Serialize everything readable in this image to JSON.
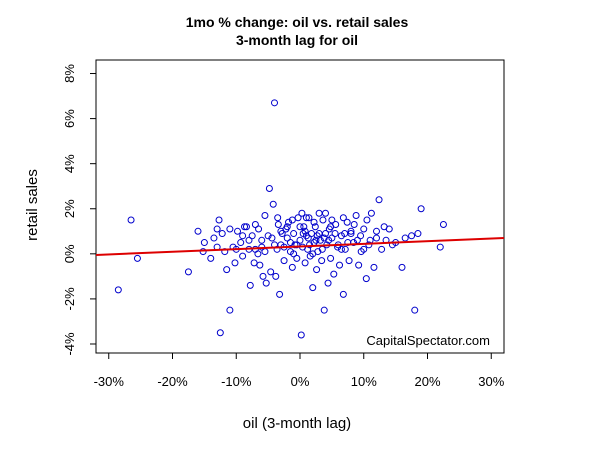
{
  "chart_data": {
    "type": "scatter",
    "title": "1mo % change: oil vs. retail sales",
    "subtitle": "3-month lag for oil",
    "xlabel": "oil (3-month lag)",
    "ylabel": "retail sales",
    "xlim": [
      -32,
      32
    ],
    "ylim": [
      -4.4,
      8.6
    ],
    "x_ticks": [
      -30,
      -20,
      -10,
      0,
      10,
      20,
      30
    ],
    "x_tick_labels": [
      "-30%",
      "-20%",
      "-10%",
      "0%",
      "10%",
      "20%",
      "30%"
    ],
    "y_ticks": [
      -4,
      -2,
      0,
      2,
      4,
      6,
      8
    ],
    "y_tick_labels": [
      "-4%",
      "-2%",
      "0%",
      "2%",
      "4%",
      "6%",
      "8%"
    ],
    "grid": false,
    "annotation": "CapitalSpectator.com",
    "colors": {
      "points": "#0000cc",
      "fit_line": "#dd0000",
      "axes": "#000000"
    },
    "fit_line": {
      "x": [
        -32,
        32
      ],
      "y": [
        -0.05,
        0.7
      ]
    },
    "points": [
      [
        -28.5,
        -1.6
      ],
      [
        -26.5,
        1.5
      ],
      [
        -25.5,
        -0.2
      ],
      [
        -17.5,
        -0.8
      ],
      [
        -16,
        1.0
      ],
      [
        -15.2,
        0.1
      ],
      [
        -14,
        -0.2
      ],
      [
        -13.5,
        0.7
      ],
      [
        -13,
        1.1
      ],
      [
        -12.7,
        1.5
      ],
      [
        -12.5,
        -3.5
      ],
      [
        -12.2,
        0.9
      ],
      [
        -11.8,
        0.1
      ],
      [
        -11.5,
        -0.7
      ],
      [
        -11,
        -2.5
      ],
      [
        -10.5,
        0.3
      ],
      [
        -10.2,
        -0.4
      ],
      [
        -9.8,
        1.0
      ],
      [
        -9.3,
        0.5
      ],
      [
        -9,
        -0.1
      ],
      [
        -8.7,
        1.2
      ],
      [
        -8.4,
        1.2
      ],
      [
        -8,
        0.2
      ],
      [
        -7.8,
        -1.4
      ],
      [
        -7.5,
        0.8
      ],
      [
        -7.2,
        -0.4
      ],
      [
        -7,
        1.3
      ],
      [
        -6.6,
        0.0
      ],
      [
        -6.3,
        -0.5
      ],
      [
        -6,
        0.6
      ],
      [
        -5.8,
        -1.0
      ],
      [
        -5.5,
        1.7
      ],
      [
        -5.3,
        -1.3
      ],
      [
        -5,
        0.8
      ],
      [
        -4.8,
        2.9
      ],
      [
        -4.6,
        -0.8
      ],
      [
        -4.4,
        0.7
      ],
      [
        -4.2,
        2.2
      ],
      [
        -4,
        6.7
      ],
      [
        -3.8,
        -1.0
      ],
      [
        -3.6,
        0.2
      ],
      [
        -3.4,
        1.3
      ],
      [
        -3.2,
        -1.8
      ],
      [
        -3,
        0.4
      ],
      [
        -2.8,
        0.9
      ],
      [
        -2.5,
        -0.3
      ],
      [
        -2.2,
        1.1
      ],
      [
        -2,
        0.7
      ],
      [
        -1.8,
        1.4
      ],
      [
        -1.5,
        0.1
      ],
      [
        -1.2,
        -0.6
      ],
      [
        -1,
        0.9
      ],
      [
        -0.8,
        0.4
      ],
      [
        -0.5,
        -0.2
      ],
      [
        -0.3,
        1.6
      ],
      [
        0,
        0.6
      ],
      [
        0.2,
        -3.6
      ],
      [
        0.4,
        0.3
      ],
      [
        0.6,
        1.2
      ],
      [
        0.8,
        -0.4
      ],
      [
        1,
        0.8
      ],
      [
        1.2,
        0.2
      ],
      [
        1.4,
        1.6
      ],
      [
        1.6,
        -0.1
      ],
      [
        1.8,
        0.9
      ],
      [
        2,
        -1.5
      ],
      [
        2.2,
        0.5
      ],
      [
        2.4,
        1.2
      ],
      [
        2.6,
        -0.7
      ],
      [
        2.8,
        0.1
      ],
      [
        3,
        1.8
      ],
      [
        3.2,
        0.6
      ],
      [
        3.4,
        -0.3
      ],
      [
        3.6,
        1.5
      ],
      [
        3.8,
        -2.5
      ],
      [
        4,
        0.9
      ],
      [
        4.2,
        0.4
      ],
      [
        4.4,
        -1.3
      ],
      [
        4.6,
        1.1
      ],
      [
        4.8,
        -0.2
      ],
      [
        5,
        0.7
      ],
      [
        5.3,
        -0.9
      ],
      [
        5.6,
        1.3
      ],
      [
        5.9,
        0.3
      ],
      [
        6.2,
        -0.5
      ],
      [
        6.5,
        0.8
      ],
      [
        6.8,
        -1.8
      ],
      [
        7.1,
        0.2
      ],
      [
        7.4,
        1.4
      ],
      [
        7.7,
        -0.3
      ],
      [
        8,
        0.9
      ],
      [
        8.4,
        0.5
      ],
      [
        8.8,
        1.7
      ],
      [
        9.2,
        -0.5
      ],
      [
        9.6,
        0.1
      ],
      [
        10,
        1.1
      ],
      [
        10.4,
        -1.1
      ],
      [
        10.8,
        0.4
      ],
      [
        11.2,
        1.8
      ],
      [
        11.6,
        -0.6
      ],
      [
        12,
        0.7
      ],
      [
        12.4,
        2.4
      ],
      [
        12.8,
        0.2
      ],
      [
        13.2,
        1.2
      ],
      [
        14.5,
        0.4
      ],
      [
        16,
        -0.6
      ],
      [
        16.5,
        0.7
      ],
      [
        17.5,
        0.8
      ],
      [
        18,
        -2.5
      ],
      [
        18.5,
        0.9
      ],
      [
        19,
        2.0
      ],
      [
        22,
        0.3
      ],
      [
        22.5,
        1.3
      ],
      [
        1.5,
        0.4
      ],
      [
        2.5,
        0.6
      ],
      [
        -1.5,
        0.5
      ],
      [
        3.5,
        0.2
      ],
      [
        0.5,
        0.9
      ],
      [
        4.5,
        0.6
      ],
      [
        -2.5,
        0.3
      ],
      [
        6,
        0.4
      ],
      [
        7,
        0.9
      ],
      [
        -6,
        0.3
      ],
      [
        9,
        0.6
      ],
      [
        -8,
        0.6
      ],
      [
        10,
        0.2
      ],
      [
        -10,
        0.2
      ],
      [
        0,
        1.2
      ],
      [
        1,
        1.6
      ],
      [
        5,
        1.5
      ],
      [
        3,
        0.9
      ],
      [
        -4,
        0.4
      ],
      [
        8,
        1.0
      ],
      [
        11,
        0.6
      ],
      [
        -3,
        1.0
      ],
      [
        2,
        0.0
      ],
      [
        12,
        1.0
      ],
      [
        -7,
        0.2
      ],
      [
        4,
        1.8
      ],
      [
        -1,
        0.0
      ],
      [
        6.5,
        0.2
      ],
      [
        1.3,
        0.7
      ],
      [
        2.7,
        0.8
      ],
      [
        -0.5,
        0.4
      ],
      [
        3.8,
        0.7
      ],
      [
        5.5,
        0.9
      ],
      [
        -2,
        1.2
      ],
      [
        0.8,
        1.0
      ],
      [
        7.5,
        0.5
      ],
      [
        -5.5,
        0.1
      ],
      [
        9.5,
        0.8
      ],
      [
        -9,
        0.8
      ],
      [
        14,
        1.1
      ],
      [
        -13,
        0.3
      ],
      [
        13.5,
        0.6
      ],
      [
        -15,
        0.5
      ],
      [
        15,
        0.5
      ],
      [
        -11,
        1.1
      ],
      [
        10.5,
        1.5
      ],
      [
        -6.5,
        1.1
      ],
      [
        8.5,
        1.3
      ],
      [
        -3.5,
        1.6
      ],
      [
        4.8,
        1.2
      ],
      [
        2.2,
        1.4
      ],
      [
        0.3,
        1.8
      ],
      [
        -1.2,
        1.5
      ],
      [
        6.8,
        1.6
      ]
    ]
  }
}
